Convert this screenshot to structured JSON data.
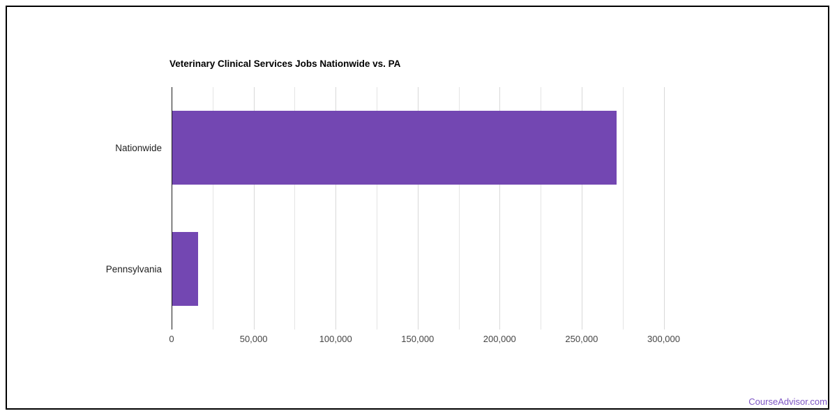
{
  "page": {
    "background": "#ffffff",
    "border_color": "#000000",
    "footer": {
      "brand": "CourseAdvisor.com",
      "color": "#7d55c4"
    }
  },
  "chart_data": {
    "type": "bar",
    "orientation": "horizontal",
    "title": "Veterinary Clinical Services Jobs Nationwide vs. PA",
    "categories": [
      "Nationwide",
      "Pennsylvania"
    ],
    "values": [
      271000,
      15500
    ],
    "xlabel": "",
    "ylabel": "",
    "xlim": [
      0,
      300000
    ],
    "x_ticks": [
      0,
      50000,
      100000,
      150000,
      200000,
      250000,
      300000
    ],
    "x_tick_labels": [
      "0",
      "50,000",
      "100,000",
      "150,000",
      "200,000",
      "250,000",
      "300,000"
    ],
    "minor_gridline_interval": 25000,
    "grid": true,
    "legend": "none",
    "bar_color": "#7347B2"
  }
}
